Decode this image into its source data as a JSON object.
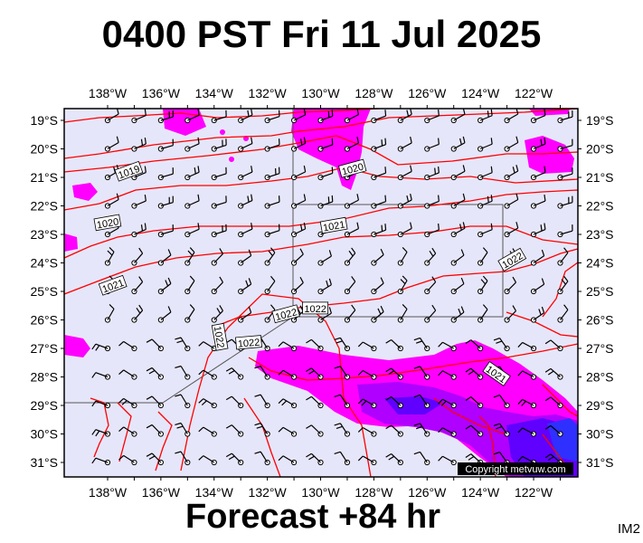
{
  "title": "0400 PST Fri 11 Jul 2025",
  "subtitle": "Forecast +84 hr",
  "image_code": "IM2",
  "copyright": "Copyright metvuw.com",
  "axes": {
    "lon_labels": [
      "138°W",
      "136°W",
      "134°W",
      "132°W",
      "130°W",
      "128°W",
      "126°W",
      "124°W",
      "122°W"
    ],
    "lat_labels": [
      "19°S",
      "20°S",
      "21°S",
      "22°S",
      "23°S",
      "24°S",
      "25°S",
      "26°S",
      "27°S",
      "28°S",
      "29°S",
      "30°S",
      "31°S"
    ]
  },
  "isobar_labels": [
    {
      "text": "1019",
      "lon": -137.2,
      "lat": -20.8,
      "rot": -20
    },
    {
      "text": "1020",
      "lon": -138.0,
      "lat": -22.6,
      "rot": -10
    },
    {
      "text": "1020",
      "lon": -128.8,
      "lat": -20.7,
      "rot": -15
    },
    {
      "text": "1021",
      "lon": -129.5,
      "lat": -22.7,
      "rot": -10
    },
    {
      "text": "1021",
      "lon": -137.8,
      "lat": -24.8,
      "rot": -20
    },
    {
      "text": "1021",
      "lon": -123.4,
      "lat": -27.9,
      "rot": 35
    },
    {
      "text": "1022",
      "lon": -122.8,
      "lat": -23.9,
      "rot": -30
    },
    {
      "text": "1022",
      "lon": -130.2,
      "lat": -25.6,
      "rot": 0
    },
    {
      "text": "1022",
      "lon": -131.3,
      "lat": -25.8,
      "rot": -15
    },
    {
      "text": "1022",
      "lon": -133.8,
      "lat": -26.6,
      "rot": 80
    },
    {
      "text": "1022",
      "lon": -132.7,
      "lat": -26.8,
      "rot": -5
    }
  ],
  "colors": {
    "land_bg": "#e6e6fa",
    "isobar": "#ff0000",
    "rain_light": "#ff00ff",
    "rain_medium": "#b000ff",
    "rain_heavy": "#6000ff",
    "heavy_core": "#2f2fff"
  }
}
